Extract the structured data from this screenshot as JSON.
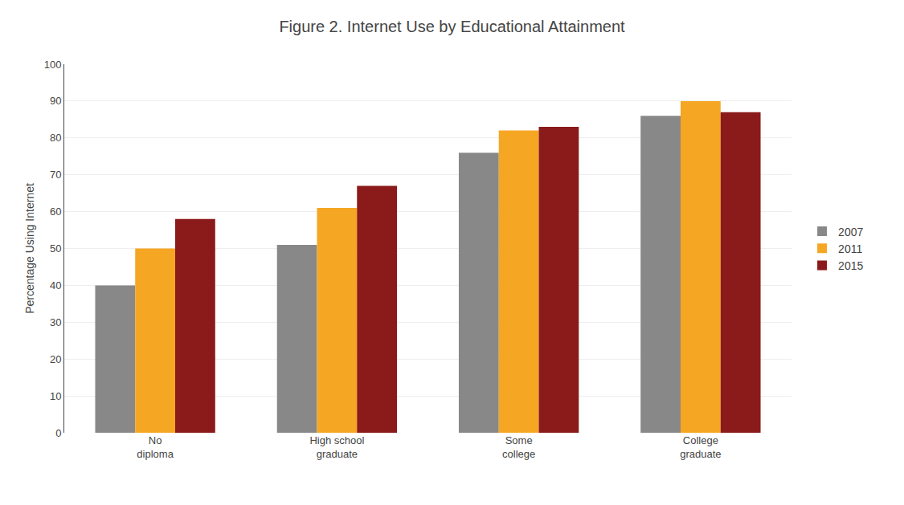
{
  "chart_data": {
    "type": "bar",
    "title": "Figure 2. Internet Use by Educational Attainment",
    "ylabel": "Percentage Using Internet",
    "categories": [
      "No\ndiploma",
      "High school\ngraduate",
      "Some\ncollege",
      "College\ngraduate"
    ],
    "series": [
      {
        "name": "2007",
        "color": "#888888",
        "values": [
          40,
          51,
          76,
          86
        ]
      },
      {
        "name": "2011",
        "color": "#F5A623",
        "values": [
          50,
          61,
          82,
          90
        ]
      },
      {
        "name": "2015",
        "color": "#8B1A1A",
        "values": [
          58,
          67,
          83,
          87
        ]
      }
    ],
    "ylim": [
      0,
      100
    ],
    "yticks": [
      0,
      10,
      20,
      30,
      40,
      50,
      60,
      70,
      80,
      90,
      100
    ],
    "grid": true,
    "legend": "right"
  }
}
